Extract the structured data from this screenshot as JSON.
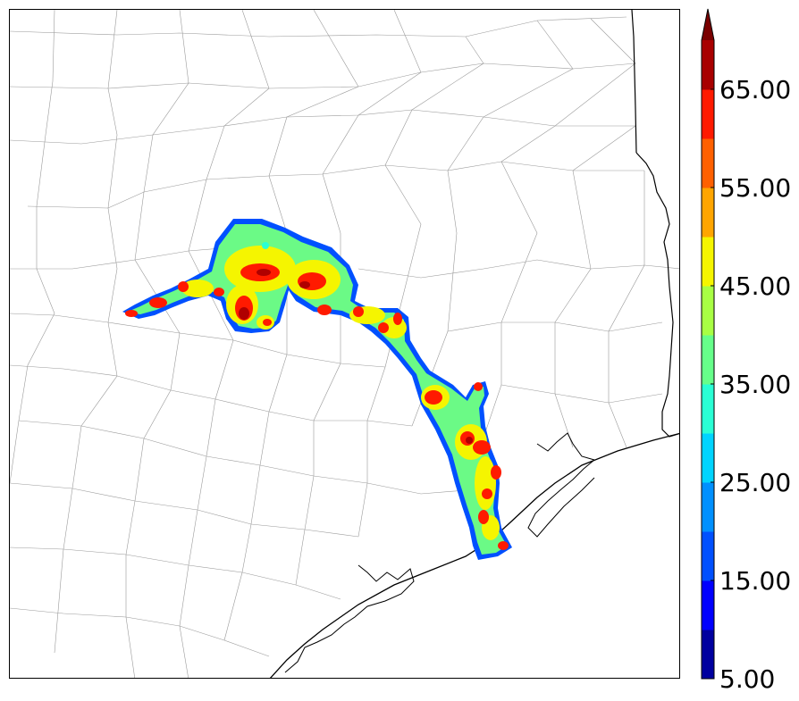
{
  "colorbar": {
    "tick_labels": [
      "5.00",
      "15.00",
      "25.00",
      "35.00",
      "45.00",
      "55.00",
      "65.00"
    ],
    "bin_colors": [
      "#00009f",
      "#0000ff",
      "#0050ff",
      "#0090ff",
      "#00d4ff",
      "#2affd4",
      "#66ff8a",
      "#a8ff44",
      "#f5f500",
      "#ffa500",
      "#ff6000",
      "#ff1a00",
      "#a80000"
    ],
    "extend_color": "#7a0000",
    "extend": "max"
  },
  "map": {
    "field_colors": {
      "low": "#0050ff",
      "mid": "#6bfa86",
      "high": "#f5f500",
      "peak": "#ff1a00",
      "max": "#b00000"
    }
  }
}
